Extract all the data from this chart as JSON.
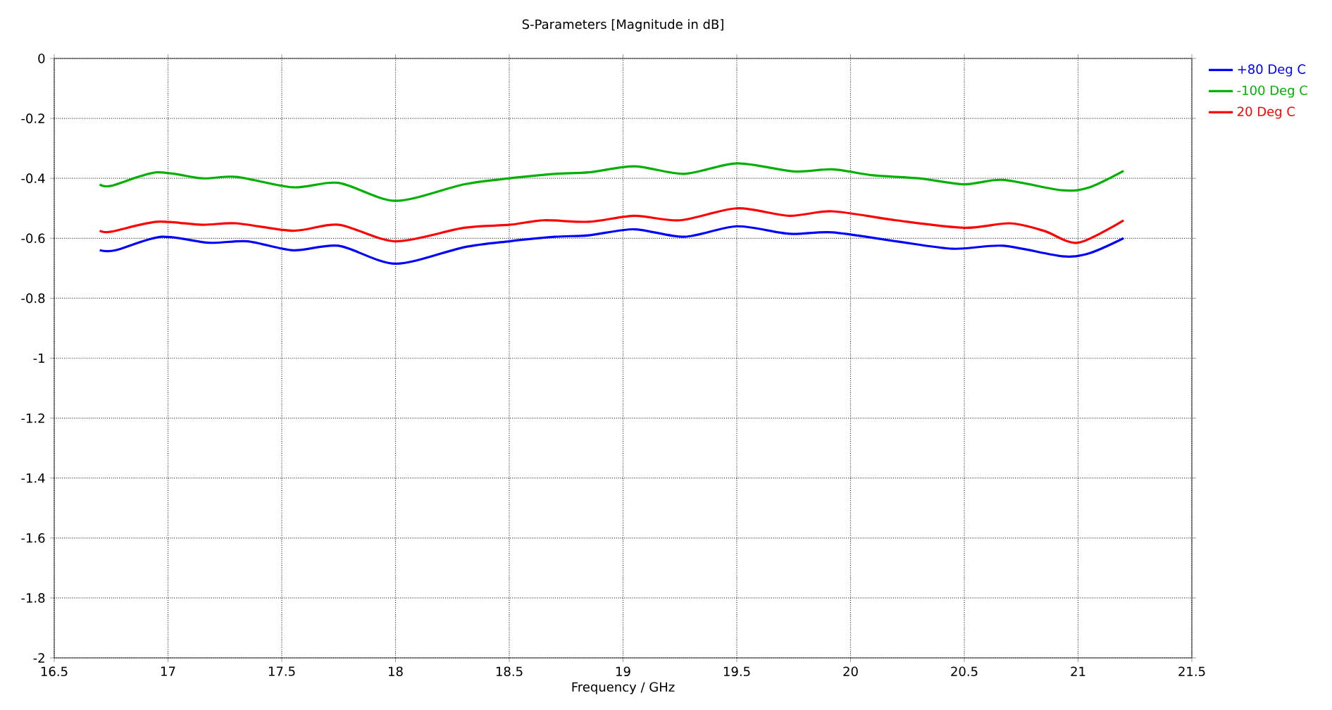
{
  "chart_data": {
    "type": "line",
    "title": "S-Parameters [Magnitude in dB]",
    "xlabel": "Frequency / GHz",
    "xlim": [
      16.5,
      21.5
    ],
    "xticks": [
      16.5,
      17,
      17.5,
      18,
      18.5,
      19,
      19.5,
      20,
      20.5,
      21,
      21.5
    ],
    "ylim": [
      -2,
      0
    ],
    "yticks": [
      -2,
      -1.8,
      -1.6,
      -1.4,
      -1.2,
      -1,
      -0.8,
      -0.6,
      -0.4,
      -0.2,
      0
    ],
    "grid": true,
    "legend": "top right",
    "line_style": "solid",
    "marker": "none",
    "series": [
      {
        "name": "+80 Deg C",
        "color": "#0000ff",
        "x": [
          16.7,
          16.77,
          16.97,
          17.18,
          17.35,
          17.55,
          17.75,
          18.0,
          18.3,
          18.5,
          18.7,
          18.85,
          19.05,
          19.27,
          19.5,
          19.73,
          19.92,
          20.2,
          20.45,
          20.67,
          20.93,
          21.05,
          21.2
        ],
        "values": [
          -0.64,
          -0.64,
          -0.595,
          -0.615,
          -0.61,
          -0.64,
          -0.625,
          -0.685,
          -0.63,
          -0.61,
          -0.595,
          -0.59,
          -0.57,
          -0.595,
          -0.56,
          -0.585,
          -0.58,
          -0.61,
          -0.635,
          -0.625,
          -0.66,
          -0.65,
          -0.6
        ]
      },
      {
        "name": "-100 Deg C",
        "color": "#00b000",
        "x": [
          16.7,
          16.75,
          16.95,
          17.15,
          17.3,
          17.55,
          17.75,
          18.0,
          18.3,
          18.5,
          18.7,
          18.85,
          19.05,
          19.27,
          19.5,
          19.75,
          19.92,
          20.1,
          20.3,
          20.5,
          20.67,
          20.93,
          21.05,
          21.2
        ],
        "values": [
          -0.42,
          -0.425,
          -0.38,
          -0.4,
          -0.395,
          -0.43,
          -0.415,
          -0.475,
          -0.42,
          -0.4,
          -0.385,
          -0.38,
          -0.36,
          -0.385,
          -0.35,
          -0.377,
          -0.37,
          -0.39,
          -0.4,
          -0.42,
          -0.405,
          -0.44,
          -0.43,
          -0.375
        ]
      },
      {
        "name": "20 Deg C",
        "color": "#ff0000",
        "x": [
          16.7,
          16.75,
          16.95,
          17.15,
          17.3,
          17.55,
          17.75,
          18.0,
          18.3,
          18.5,
          18.65,
          18.85,
          19.05,
          19.25,
          19.5,
          19.73,
          19.92,
          20.2,
          20.5,
          20.7,
          20.85,
          21.0,
          21.2
        ],
        "values": [
          -0.575,
          -0.578,
          -0.545,
          -0.555,
          -0.55,
          -0.575,
          -0.555,
          -0.61,
          -0.565,
          -0.555,
          -0.54,
          -0.545,
          -0.525,
          -0.54,
          -0.5,
          -0.525,
          -0.51,
          -0.54,
          -0.565,
          -0.55,
          -0.575,
          -0.615,
          -0.54
        ]
      }
    ]
  }
}
